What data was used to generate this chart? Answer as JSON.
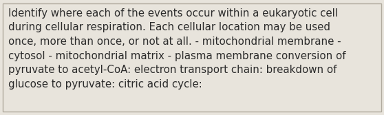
{
  "text": "Identify where each of the events occur within a eukaryotic cell\nduring cellular respiration. Each cellular location may be used\nonce, more than once, or not at all. - mitochondrial membrane -\ncytosol - mitochondrial matrix - plasma membrane conversion of\npyruvate to acetyl-CoA: electron transport chain: breakdown of\nglucose to pyruvate: citric acid cycle:",
  "font_size": 10.8,
  "font_family": "DejaVu Sans",
  "text_color": "#2b2b2b",
  "background_color": "#e8e4dc",
  "border_color": "#b0aa9e",
  "figsize": [
    5.58,
    1.67
  ],
  "dpi": 100
}
